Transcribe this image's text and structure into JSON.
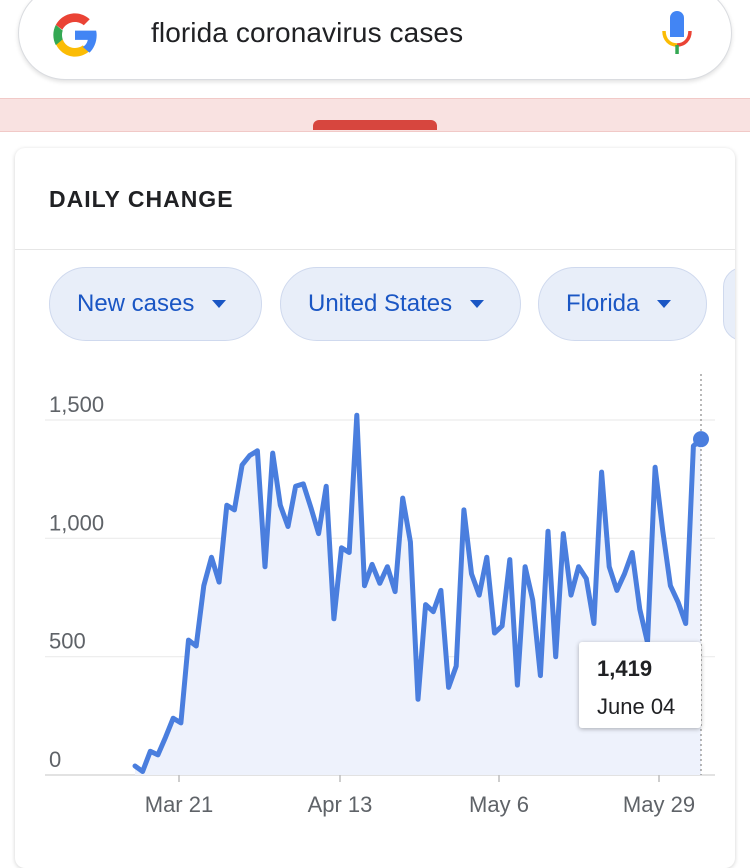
{
  "search": {
    "query": "florida coronavirus cases",
    "logo_colors": {
      "blue": "#4285F4",
      "red": "#EA4335",
      "yellow": "#FBBC05",
      "green": "#34A853"
    },
    "icons": {
      "left": "google-g-logo",
      "right": "microphone-icon"
    }
  },
  "card": {
    "title": "DAILY CHANGE",
    "chips": [
      {
        "label": "New cases"
      },
      {
        "label": "United States"
      },
      {
        "label": "Florida"
      }
    ],
    "accent_color": "#1a56c4"
  },
  "tooltip": {
    "value": "1,419",
    "date": "June 04"
  },
  "chart_data": {
    "type": "line",
    "title": "",
    "xlabel": "",
    "ylabel": "",
    "x_tick_labels": [
      "Mar 21",
      "Apr 13",
      "May 6",
      "May 29"
    ],
    "y_tick_labels": [
      "0",
      "500",
      "1,000",
      "1,500"
    ],
    "ylim": [
      0,
      1500
    ],
    "grid": true,
    "line_color": "#4a7ede",
    "fill_color": "#eef2fc",
    "series": [
      {
        "values": [
          38,
          15,
          100,
          85,
          160,
          240,
          220,
          570,
          545,
          800,
          920,
          815,
          1140,
          1120,
          1310,
          1350,
          1370,
          880,
          1360,
          1140,
          1050,
          1220,
          1230,
          1130,
          1020,
          1220,
          660,
          960,
          940,
          1520,
          800,
          890,
          810,
          880,
          775,
          1170,
          985,
          320,
          720,
          690,
          780,
          370,
          460,
          1120,
          850,
          760,
          920,
          600,
          630,
          910,
          380,
          880,
          740,
          420,
          1030,
          500,
          1020,
          760,
          880,
          830,
          640,
          1280,
          880,
          780,
          850,
          940,
          700,
          560,
          1300,
          1030,
          800,
          730,
          640,
          1390,
          1419
        ]
      }
    ],
    "highlight": {
      "label": "June 04",
      "value": 1419
    }
  }
}
